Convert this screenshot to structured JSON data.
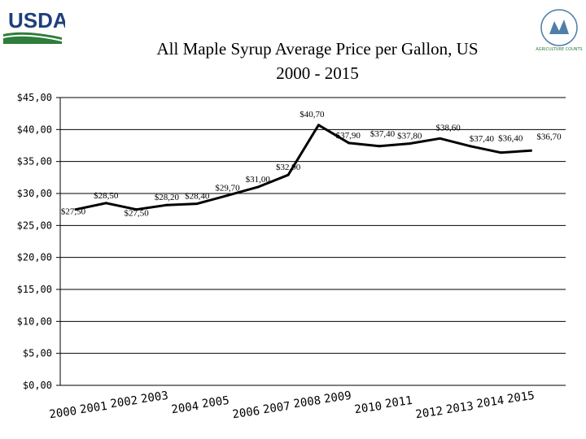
{
  "header": {
    "logo_text": "USDA",
    "seal_text": "AGRICULTURE COUNTS"
  },
  "colors": {
    "usda_blue": "#1f3f7a",
    "usda_green": "#2e7d3a",
    "line": "#000000",
    "grid": "#000000"
  },
  "chart_data": {
    "type": "line",
    "title": "All Maple Syrup Average Price per Gallon, US",
    "subtitle": "2000 - 2015",
    "xlabel": "",
    "ylabel": "",
    "ylim": [
      0,
      45
    ],
    "grid": true,
    "legend": "none",
    "y_ticks": [
      {
        "value": 45,
        "label": "$45,00"
      },
      {
        "value": 40,
        "label": "$40,00"
      },
      {
        "value": 35,
        "label": "$35,00"
      },
      {
        "value": 30,
        "label": "$30,00"
      },
      {
        "value": 25,
        "label": "$25,00"
      },
      {
        "value": 20,
        "label": "$20,00"
      },
      {
        "value": 15,
        "label": "$15,00"
      },
      {
        "value": 10,
        "label": "$10,00"
      },
      {
        "value": 5,
        "label": "$5,00"
      },
      {
        "value": 0,
        "label": "$0,00"
      }
    ],
    "categories": [
      "2000",
      "2001",
      "2002",
      "2003",
      "2004",
      "2005",
      "2006",
      "2007",
      "2008",
      "2009",
      "2010",
      "2011",
      "2012",
      "2013",
      "2014",
      "2015"
    ],
    "series": [
      {
        "name": "Average Price per Gallon",
        "values": [
          27.5,
          28.5,
          27.5,
          28.2,
          28.4,
          29.7,
          31.0,
          32.9,
          40.7,
          37.9,
          37.4,
          37.8,
          38.6,
          37.4,
          36.4,
          36.7
        ],
        "labels": [
          "$27,50",
          "$28,50",
          "$27,50",
          "$28,20",
          "$28,40",
          "$29,70",
          "$31,00",
          "$32,90",
          "$40,70",
          "$37,90",
          "$37,40",
          "$37,80",
          "$38,60",
          "$37,40",
          "$36,40",
          "$36,70"
        ]
      }
    ]
  }
}
